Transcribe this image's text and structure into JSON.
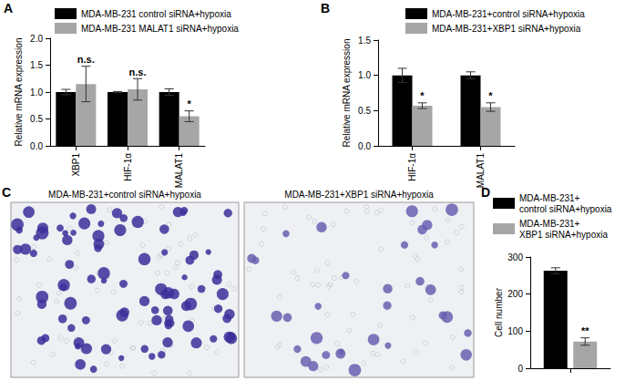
{
  "chart_data": [
    {
      "panel": "A",
      "type": "bar",
      "ylabel": "Relative mRNA expression",
      "categories": [
        "XBP1",
        "HIF-1α",
        "MALAT1"
      ],
      "series": [
        {
          "name": "MDA-MB-231 control siRNA+hypoxia",
          "color": "#000000",
          "values": [
            1.0,
            1.0,
            1.0
          ],
          "errors": [
            0.05,
            0.01,
            0.06
          ]
        },
        {
          "name": "MDA-MB-231 MALAT1 siRNA+hypoxia",
          "color": "#a6a6a6",
          "values": [
            1.15,
            1.05,
            0.55
          ],
          "errors": [
            0.33,
            0.2,
            0.1
          ],
          "annotations": [
            "n.s.",
            "n.s.",
            "*"
          ]
        }
      ],
      "ylim": [
        0,
        2
      ],
      "yticks": [
        {
          "value": 0,
          "label": "0.0"
        },
        {
          "value": 0.5,
          "label": "0.5"
        },
        {
          "value": 1,
          "label": "1.0"
        },
        {
          "value": 1.5,
          "label": "1.5"
        },
        {
          "value": 2,
          "label": "2.0"
        }
      ],
      "grid": false,
      "legend": "upper left"
    },
    {
      "panel": "B",
      "type": "bar",
      "ylabel": "Relative mRNA expression",
      "categories": [
        "HIF-1α",
        "MALAT1"
      ],
      "series": [
        {
          "name": "MDA-MB-231+control siRNA+hypoxia",
          "color": "#000000",
          "values": [
            1.0,
            1.0
          ],
          "errors": [
            0.1,
            0.05
          ]
        },
        {
          "name": "MDA-MB-231+XBP1 siRNA+hypoxia",
          "color": "#a6a6a6",
          "values": [
            0.57,
            0.55
          ],
          "errors": [
            0.04,
            0.06
          ],
          "annotations": [
            "*",
            "*"
          ]
        }
      ],
      "ylim": [
        0,
        1.5
      ],
      "yticks": [
        {
          "value": 0,
          "label": "0.0"
        },
        {
          "value": 0.5,
          "label": "0.5"
        },
        {
          "value": 1,
          "label": "1.0"
        },
        {
          "value": 1.5,
          "label": "1.5"
        }
      ],
      "grid": false,
      "legend": "upper left"
    },
    {
      "panel": "D",
      "type": "bar",
      "ylabel": "Cell number",
      "categories": [
        null
      ],
      "series": [
        {
          "name": "MDA-MB-231+\ncontrol siRNA+hypoxia",
          "color": "#000000",
          "values": [
            263
          ],
          "errors": [
            8
          ]
        },
        {
          "name": "MDA-MB-231+\nXBP1 siRNA+hypoxia",
          "color": "#a6a6a6",
          "values": [
            72
          ],
          "errors": [
            10
          ],
          "annotations": [
            "**"
          ]
        }
      ],
      "ylim": [
        0,
        300
      ],
      "yticks": [
        0,
        100,
        200,
        300
      ],
      "grid": false,
      "legend": "upper left"
    }
  ],
  "images": {
    "panel": "C",
    "items": [
      {
        "title": "MDA-MB-231+control siRNA+hypoxia"
      },
      {
        "title": "MDA-MB-231+XBP1 siRNA+hypoxia"
      }
    ]
  }
}
